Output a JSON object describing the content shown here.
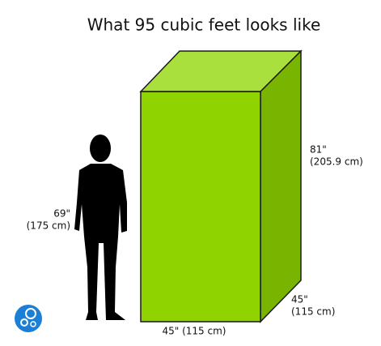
{
  "header": {
    "title": "What 95 cubic feet looks like"
  },
  "box": {
    "height": {
      "lines": [
        "81\"",
        "(205.9 cm)"
      ]
    },
    "depth": {
      "lines": [
        "45\"",
        "(115 cm)"
      ]
    },
    "width": {
      "label": "45\" (115 cm)"
    }
  },
  "person": {
    "height": {
      "lines": [
        "69\"",
        "(175 cm)"
      ]
    }
  }
}
